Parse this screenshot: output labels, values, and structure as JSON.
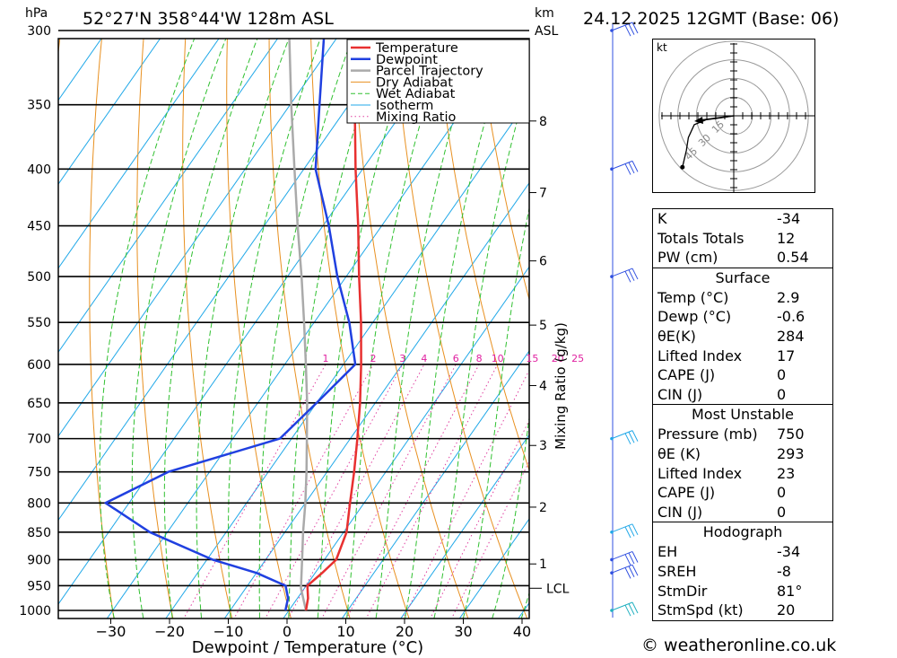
{
  "header": {
    "location": "52°27'N 358°44'W 128m ASL",
    "datetime": "24.12.2025 12GMT (Base: 06)",
    "hpa_label": "hPa",
    "km_label": "km",
    "asl_label": "ASL"
  },
  "chart_data": {
    "type": "skew-t",
    "xlabel": "Dewpoint / Temperature (°C)",
    "ylabel_right": "Mixing Ratio (g/kg)",
    "x_ticks": [
      -30,
      -20,
      -10,
      0,
      10,
      20,
      30,
      40
    ],
    "pressure_levels": [
      300,
      350,
      400,
      450,
      500,
      550,
      600,
      650,
      700,
      750,
      800,
      850,
      900,
      950,
      1000
    ],
    "km_ticks": [
      {
        "label": "1",
        "p": 908
      },
      {
        "label": "2",
        "p": 807
      },
      {
        "label": "3",
        "p": 710
      },
      {
        "label": "4",
        "p": 627
      },
      {
        "label": "5",
        "p": 553
      },
      {
        "label": "6",
        "p": 484
      },
      {
        "label": "7",
        "p": 420
      },
      {
        "label": "8",
        "p": 362
      }
    ],
    "lcl": {
      "label": "LCL",
      "p": 955
    },
    "mixing_ratio_labels": [
      "1",
      "2",
      "3",
      "4",
      "6",
      "8",
      "10",
      "15",
      "20",
      "25"
    ],
    "legend": [
      "Temperature",
      "Dewpoint",
      "Parcel Trajectory",
      "Dry Adiabat",
      "Wet Adiabat",
      "Isotherm",
      "Mixing Ratio"
    ],
    "legend_colors": [
      "#e83030",
      "#2040e0",
      "#aaaaaa",
      "#e89020",
      "#30c030",
      "#20a8e8",
      "#e040a0"
    ],
    "temperature": [
      {
        "p": 1000,
        "t": 2.9
      },
      {
        "p": 975,
        "t": 1.8
      },
      {
        "p": 950,
        "t": 0.2
      },
      {
        "p": 925,
        "t": 1.2
      },
      {
        "p": 900,
        "t": 2.0
      },
      {
        "p": 850,
        "t": 0.5
      },
      {
        "p": 800,
        "t": -2.4
      },
      {
        "p": 750,
        "t": -5.4
      },
      {
        "p": 700,
        "t": -8.8
      },
      {
        "p": 650,
        "t": -12.6
      },
      {
        "p": 600,
        "t": -17.0
      },
      {
        "p": 550,
        "t": -22.0
      },
      {
        "p": 500,
        "t": -27.8
      },
      {
        "p": 450,
        "t": -34.0
      },
      {
        "p": 400,
        "t": -41.2
      },
      {
        "p": 350,
        "t": -49.0
      },
      {
        "p": 300,
        "t": -57.0
      }
    ],
    "dewpoint": [
      {
        "p": 1000,
        "t": -0.6
      },
      {
        "p": 975,
        "t": -1.6
      },
      {
        "p": 950,
        "t": -3.5
      },
      {
        "p": 925,
        "t": -10.0
      },
      {
        "p": 900,
        "t": -19.0
      },
      {
        "p": 850,
        "t": -33.0
      },
      {
        "p": 800,
        "t": -44.0
      },
      {
        "p": 750,
        "t": -37.0
      },
      {
        "p": 700,
        "t": -22.0
      },
      {
        "p": 650,
        "t": -20.0
      },
      {
        "p": 600,
        "t": -18.0
      },
      {
        "p": 550,
        "t": -24.0
      },
      {
        "p": 500,
        "t": -31.5
      },
      {
        "p": 450,
        "t": -39.0
      },
      {
        "p": 400,
        "t": -48.0
      },
      {
        "p": 350,
        "t": -55.0
      },
      {
        "p": 300,
        "t": -63.0
      }
    ],
    "parcel": [
      {
        "p": 1000,
        "t": 2.9
      },
      {
        "p": 955,
        "t": -0.6
      },
      {
        "p": 900,
        "t": -3.8
      },
      {
        "p": 850,
        "t": -6.9
      },
      {
        "p": 800,
        "t": -10.0
      },
      {
        "p": 750,
        "t": -13.5
      },
      {
        "p": 700,
        "t": -17.4
      },
      {
        "p": 650,
        "t": -21.6
      },
      {
        "p": 600,
        "t": -26.4
      },
      {
        "p": 550,
        "t": -31.7
      },
      {
        "p": 500,
        "t": -37.6
      },
      {
        "p": 450,
        "t": -44.3
      },
      {
        "p": 400,
        "t": -51.6
      },
      {
        "p": 350,
        "t": -59.8
      },
      {
        "p": 300,
        "t": -69.0
      }
    ],
    "wind_barbs": [
      {
        "p": 300,
        "color": "#3050e0"
      },
      {
        "p": 400,
        "color": "#3050e0"
      },
      {
        "p": 500,
        "color": "#3050e0"
      },
      {
        "p": 700,
        "color": "#20a8e8"
      },
      {
        "p": 850,
        "color": "#20a8e8"
      },
      {
        "p": 900,
        "color": "#3050e0"
      },
      {
        "p": 925,
        "color": "#3050e0"
      },
      {
        "p": 1000,
        "color": "#20b0c0"
      }
    ],
    "hodograph": {
      "unit_label": "kt",
      "ring_labels": [
        "15",
        "30",
        "45"
      ],
      "trace": [
        [
          0,
          0
        ],
        [
          -13,
          2
        ],
        [
          -28,
          4
        ],
        [
          -40,
          9
        ],
        [
          -46,
          22
        ],
        [
          -48,
          35
        ],
        [
          -52,
          52
        ]
      ]
    }
  },
  "indices": {
    "top": [
      {
        "name": "K",
        "value": "-34"
      },
      {
        "name": "Totals Totals",
        "value": "12"
      },
      {
        "name": "PW (cm)",
        "value": "0.54"
      }
    ],
    "surface": {
      "title": "Surface",
      "rows": [
        {
          "name": "Temp (°C)",
          "value": "2.9"
        },
        {
          "name": "Dewp (°C)",
          "value": "-0.6"
        },
        {
          "name": "θE(K)",
          "value": "284"
        },
        {
          "name": "Lifted Index",
          "value": "17"
        },
        {
          "name": "CAPE (J)",
          "value": "0"
        },
        {
          "name": "CIN (J)",
          "value": "0"
        }
      ]
    },
    "most_unstable": {
      "title": "Most Unstable",
      "rows": [
        {
          "name": "Pressure (mb)",
          "value": "750"
        },
        {
          "name": "θE (K)",
          "value": "293"
        },
        {
          "name": "Lifted Index",
          "value": "23"
        },
        {
          "name": "CAPE (J)",
          "value": "0"
        },
        {
          "name": "CIN (J)",
          "value": "0"
        }
      ]
    },
    "hodograph": {
      "title": "Hodograph",
      "rows": [
        {
          "name": "EH",
          "value": "-34"
        },
        {
          "name": "SREH",
          "value": "-8"
        },
        {
          "name": "StmDir",
          "value": "81°"
        },
        {
          "name": "StmSpd (kt)",
          "value": "20"
        }
      ]
    }
  },
  "footer": "© weatheronline.co.uk"
}
